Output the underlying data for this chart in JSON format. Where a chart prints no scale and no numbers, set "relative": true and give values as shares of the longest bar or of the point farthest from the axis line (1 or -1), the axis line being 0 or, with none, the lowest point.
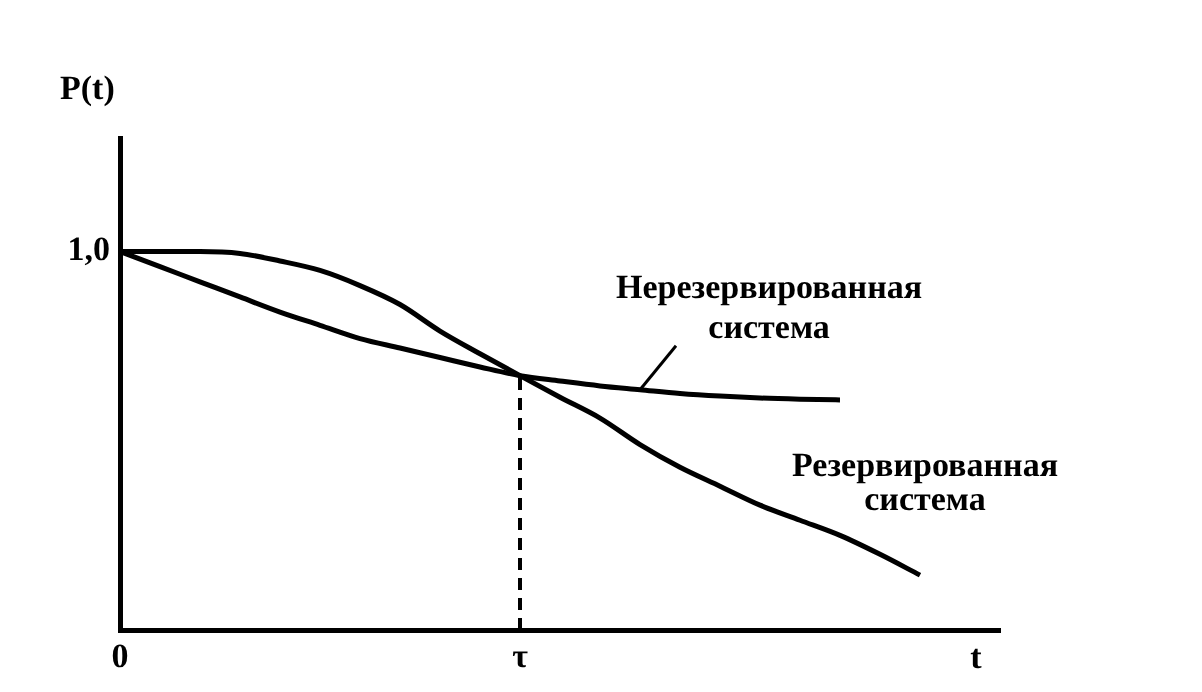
{
  "chart_data": {
    "type": "line",
    "relative": true,
    "xlabel": "t",
    "ylabel": "P(t)",
    "categories": [
      "0",
      null,
      null,
      null,
      null,
      null,
      null,
      null,
      null,
      null,
      "τ",
      null,
      null,
      null,
      null,
      null,
      null,
      null,
      null,
      null,
      null,
      null,
      null
    ],
    "annotations": [
      "1,0"
    ],
    "grid": false,
    "legend": false,
    "marker": "none",
    "line_style": "solid",
    "ref_lines": [
      {
        "axis": "x",
        "value": "τ",
        "line_style": "dashed",
        "color": "#000000"
      }
    ],
    "series": [
      {
        "name": "Нерезервированная система",
        "color": "#000000",
        "values": [
          1,
          0.96,
          0.92,
          0.88,
          0.84,
          0.805,
          0.77,
          0.745,
          0.72,
          0.695,
          0.672,
          0.658,
          0.645,
          0.635,
          0.625,
          0.618,
          0.613,
          0.61,
          0.608,
          null,
          null,
          null,
          null
        ]
      },
      {
        "name": "Резервированная система",
        "color": "#000000",
        "values": [
          1,
          1,
          1,
          0.995,
          0.975,
          0.95,
          0.91,
          0.86,
          0.79,
          0.73,
          0.672,
          0.615,
          0.56,
          0.49,
          0.43,
          0.38,
          0.33,
          0.29,
          0.25,
          0.2,
          0.145,
          null,
          null
        ]
      }
    ]
  }
}
